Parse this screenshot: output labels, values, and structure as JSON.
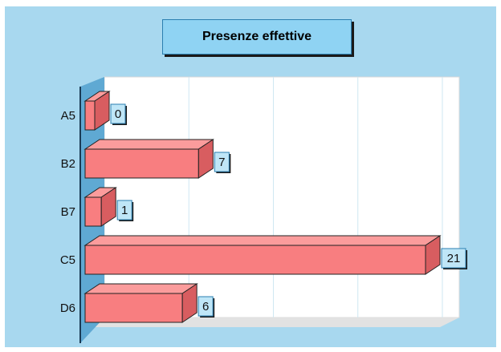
{
  "chart_data": {
    "type": "bar",
    "orientation": "horizontal",
    "title": "Presenze effettive",
    "categories": [
      "A5",
      "B2",
      "B7",
      "C5",
      "D6"
    ],
    "values": [
      0,
      7,
      1,
      21,
      6
    ],
    "xlim": [
      0,
      21
    ],
    "grid": true,
    "legend": "none",
    "style": "3d"
  },
  "colors": {
    "background": "#a8d8ef",
    "plot_background": "#ffffff",
    "floor": "#e2e2e2",
    "wall": "#5fa9d3",
    "bar_front": "#f87e80",
    "bar_top": "#fb9c9c",
    "bar_side": "#d85d60",
    "value_box": "#bfe6f7",
    "grid": "#cfe7f2"
  }
}
